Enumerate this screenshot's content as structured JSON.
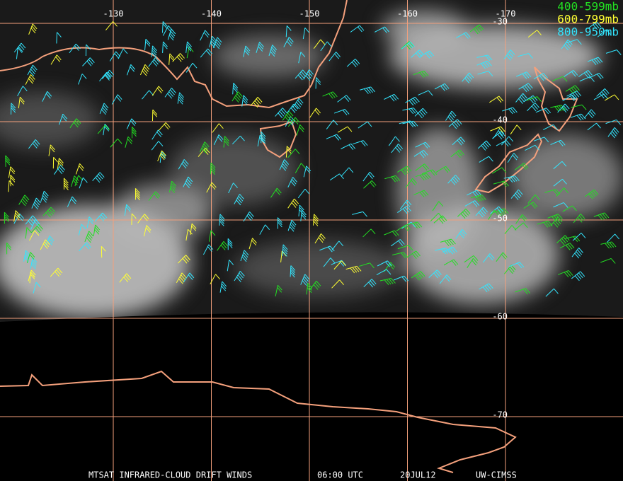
{
  "map": {
    "longitudes": [
      -130,
      -140,
      -150,
      -160,
      -170
    ],
    "latitudes": [
      -30,
      -40,
      -50,
      -60,
      -70
    ],
    "legend": [
      {
        "label": "400-599mb",
        "color": "#22e022"
      },
      {
        "label": "600-799mb",
        "color": "#ffff33"
      },
      {
        "label": "800-950mb",
        "color": "#33e6ff"
      }
    ],
    "footer": [
      "MTSAT INFRARED-CLOUD DRIFT WINDS",
      "06:00 UTC",
      "20JUL12",
      "UW-CIMSS"
    ]
  }
}
